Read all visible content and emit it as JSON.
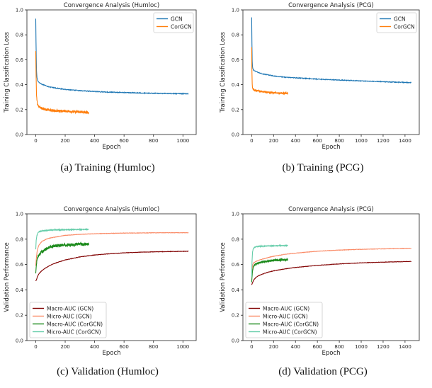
{
  "colors": {
    "gcn": "#1f77b4",
    "corgcn": "#ff7f0e",
    "macro_gcn": "#800000",
    "micro_gcn": "#fa8a66",
    "macro_corgcn": "#1b8a1b",
    "micro_corgcn": "#66cdaa"
  },
  "captions": [
    "(a)  Training (Humloc)",
    "(b)  Training (PCG)",
    "(c)  Validation (Humloc)",
    "(d)  Validation (PCG)"
  ],
  "chart_data": [
    {
      "type": "line",
      "title": "Convergence Analysis (Humloc)",
      "xlabel": "Epoch",
      "ylabel": "Training Classification Loss",
      "xlim": [
        -60,
        1090
      ],
      "ylim": [
        0.0,
        1.0
      ],
      "xticks": [
        0,
        200,
        400,
        600,
        800,
        1000
      ],
      "yticks": [
        0.0,
        0.2,
        0.4,
        0.6,
        0.8,
        1.0
      ],
      "legend": "top-right",
      "series": [
        {
          "name": "GCN",
          "color_key": "gcn",
          "noise": 0.003,
          "x": [
            0,
            2,
            5,
            8,
            12,
            20,
            40,
            70,
            100,
            150,
            200,
            300,
            400,
            500,
            600,
            700,
            800,
            900,
            1000,
            1040
          ],
          "y": [
            0.93,
            0.72,
            0.52,
            0.46,
            0.435,
            0.42,
            0.405,
            0.39,
            0.38,
            0.37,
            0.362,
            0.352,
            0.345,
            0.34,
            0.337,
            0.334,
            0.331,
            0.329,
            0.328,
            0.327
          ]
        },
        {
          "name": "CorGCN",
          "color_key": "corgcn",
          "noise": 0.01,
          "x": [
            0,
            2,
            5,
            8,
            12,
            20,
            40,
            70,
            100,
            150,
            200,
            250,
            300,
            360
          ],
          "y": [
            0.67,
            0.5,
            0.33,
            0.27,
            0.245,
            0.225,
            0.21,
            0.2,
            0.195,
            0.19,
            0.187,
            0.184,
            0.181,
            0.178
          ]
        }
      ]
    },
    {
      "type": "line",
      "title": "Convergence Analysis (PCG)",
      "xlabel": "Epoch",
      "ylabel": "Training Classification Loss",
      "xlim": [
        -80,
        1530
      ],
      "ylim": [
        0.0,
        1.0
      ],
      "xticks": [
        0,
        200,
        400,
        600,
        800,
        1000,
        1200,
        1400
      ],
      "yticks": [
        0.0,
        0.2,
        0.4,
        0.6,
        0.8,
        1.0
      ],
      "legend": "top-right",
      "series": [
        {
          "name": "GCN",
          "color_key": "gcn",
          "noise": 0.003,
          "x": [
            0,
            2,
            5,
            8,
            12,
            20,
            40,
            70,
            100,
            200,
            300,
            400,
            600,
            800,
            1000,
            1200,
            1400,
            1460
          ],
          "y": [
            0.94,
            0.75,
            0.58,
            0.54,
            0.525,
            0.515,
            0.505,
            0.495,
            0.487,
            0.47,
            0.46,
            0.455,
            0.445,
            0.437,
            0.43,
            0.424,
            0.418,
            0.416
          ]
        },
        {
          "name": "CorGCN",
          "color_key": "corgcn",
          "noise": 0.006,
          "x": [
            0,
            2,
            5,
            8,
            12,
            20,
            40,
            70,
            100,
            150,
            200,
            250,
            330
          ],
          "y": [
            0.7,
            0.52,
            0.4,
            0.375,
            0.365,
            0.358,
            0.352,
            0.347,
            0.343,
            0.338,
            0.335,
            0.333,
            0.33
          ]
        }
      ]
    },
    {
      "type": "line",
      "title": "Convergence Analysis (Humloc)",
      "xlabel": "Epoch",
      "ylabel": "Validation Performance",
      "xlim": [
        -60,
        1090
      ],
      "ylim": [
        0.0,
        1.0
      ],
      "xticks": [
        0,
        200,
        400,
        600,
        800,
        1000
      ],
      "yticks": [
        0.0,
        0.2,
        0.4,
        0.6,
        0.8,
        1.0
      ],
      "legend": "lower-left",
      "series": [
        {
          "name": "Macro-AUC (GCN)",
          "color_key": "macro_gcn",
          "noise": 0.0015,
          "x": [
            0,
            5,
            10,
            20,
            40,
            70,
            100,
            150,
            200,
            300,
            400,
            500,
            600,
            700,
            800,
            900,
            1000,
            1040
          ],
          "y": [
            0.47,
            0.48,
            0.5,
            0.525,
            0.55,
            0.575,
            0.595,
            0.618,
            0.636,
            0.66,
            0.675,
            0.685,
            0.692,
            0.697,
            0.7,
            0.702,
            0.704,
            0.705
          ]
        },
        {
          "name": "Micro-AUC (GCN)",
          "color_key": "micro_gcn",
          "noise": 0.0015,
          "x": [
            0,
            5,
            10,
            20,
            40,
            70,
            100,
            150,
            200,
            300,
            400,
            500,
            600,
            700,
            800,
            900,
            1000,
            1040
          ],
          "y": [
            0.59,
            0.66,
            0.71,
            0.75,
            0.78,
            0.8,
            0.81,
            0.82,
            0.83,
            0.838,
            0.843,
            0.846,
            0.848,
            0.849,
            0.85,
            0.851,
            0.851,
            0.851
          ]
        },
        {
          "name": "Macro-AUC (CorGCN)",
          "color_key": "macro_corgcn",
          "noise": 0.012,
          "x": [
            0,
            3,
            8,
            15,
            25,
            40,
            60,
            80,
            100,
            150,
            200,
            250,
            300,
            360
          ],
          "y": [
            0.53,
            0.58,
            0.63,
            0.66,
            0.68,
            0.7,
            0.715,
            0.73,
            0.74,
            0.75,
            0.755,
            0.758,
            0.76,
            0.762
          ]
        },
        {
          "name": "Micro-AUC (CorGCN)",
          "color_key": "micro_corgcn",
          "noise": 0.003,
          "x": [
            0,
            3,
            8,
            15,
            25,
            40,
            60,
            100,
            150,
            200,
            250,
            300,
            360
          ],
          "y": [
            0.72,
            0.79,
            0.83,
            0.85,
            0.86,
            0.865,
            0.868,
            0.872,
            0.874,
            0.875,
            0.876,
            0.877,
            0.877
          ]
        }
      ]
    },
    {
      "type": "line",
      "title": "Convergence Analysis (PCG)",
      "xlabel": "Epoch",
      "ylabel": "Validation Performance",
      "xlim": [
        -80,
        1530
      ],
      "ylim": [
        0.0,
        1.0
      ],
      "xticks": [
        0,
        200,
        400,
        600,
        800,
        1000,
        1200,
        1400
      ],
      "yticks": [
        0.0,
        0.2,
        0.4,
        0.6,
        0.8,
        1.0
      ],
      "legend": "lower-left",
      "series": [
        {
          "name": "Macro-AUC (GCN)",
          "color_key": "macro_gcn",
          "noise": 0.0015,
          "x": [
            0,
            5,
            10,
            20,
            40,
            70,
            100,
            150,
            200,
            300,
            400,
            600,
            800,
            1000,
            1200,
            1400,
            1460
          ],
          "y": [
            0.44,
            0.45,
            0.46,
            0.48,
            0.5,
            0.515,
            0.525,
            0.54,
            0.55,
            0.565,
            0.577,
            0.593,
            0.605,
            0.613,
            0.619,
            0.623,
            0.624
          ]
        },
        {
          "name": "Micro-AUC (GCN)",
          "color_key": "micro_gcn",
          "noise": 0.0015,
          "x": [
            0,
            5,
            10,
            20,
            40,
            70,
            100,
            150,
            200,
            300,
            400,
            600,
            800,
            1000,
            1200,
            1400,
            1460
          ],
          "y": [
            0.5,
            0.56,
            0.6,
            0.615,
            0.625,
            0.635,
            0.643,
            0.655,
            0.665,
            0.68,
            0.69,
            0.705,
            0.714,
            0.72,
            0.724,
            0.727,
            0.728
          ]
        },
        {
          "name": "Macro-AUC (CorGCN)",
          "color_key": "macro_corgcn",
          "noise": 0.008,
          "x": [
            0,
            3,
            8,
            15,
            25,
            40,
            60,
            100,
            150,
            200,
            250,
            300,
            330
          ],
          "y": [
            0.46,
            0.5,
            0.55,
            0.58,
            0.595,
            0.605,
            0.612,
            0.62,
            0.627,
            0.632,
            0.635,
            0.637,
            0.638
          ]
        },
        {
          "name": "Micro-AUC (CorGCN)",
          "color_key": "micro_corgcn",
          "noise": 0.002,
          "x": [
            0,
            3,
            8,
            15,
            25,
            40,
            60,
            100,
            150,
            200,
            250,
            300,
            330
          ],
          "y": [
            0.5,
            0.62,
            0.7,
            0.725,
            0.735,
            0.74,
            0.743,
            0.745,
            0.747,
            0.748,
            0.749,
            0.749,
            0.75
          ]
        }
      ]
    }
  ]
}
